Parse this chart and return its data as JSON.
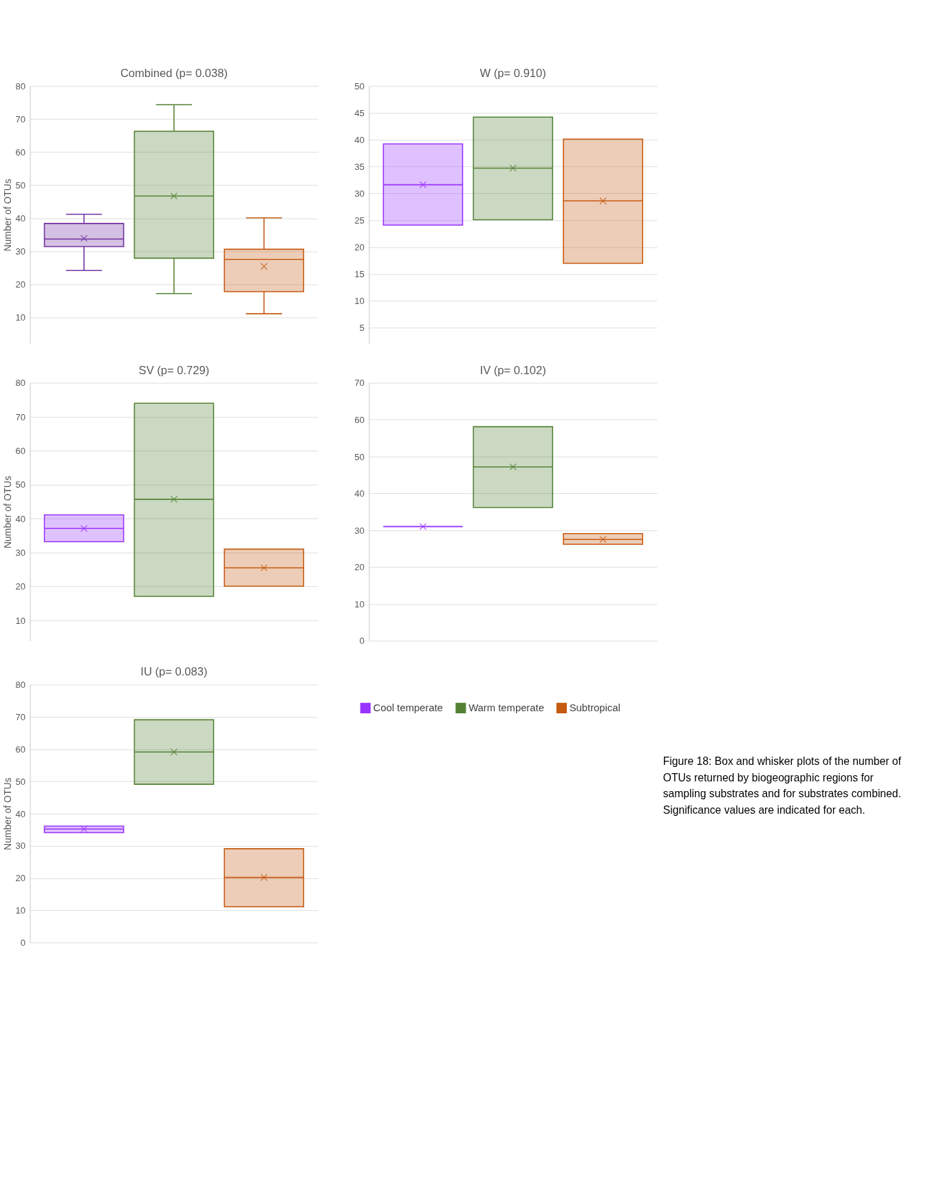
{
  "chart_data": [
    {
      "type": "box",
      "title": "Combined (p= 0.038)",
      "ylabel": "Number of OTUs",
      "categories": [
        null
      ],
      "ylim": [
        2,
        80
      ],
      "yticks": [
        10,
        20,
        30,
        40,
        50,
        60,
        70,
        80
      ],
      "grid": "y",
      "legend": false,
      "series": [
        {
          "color": "#7030a0",
          "boxes": [
            {
              "low": 24.2,
              "q1": 31.4,
              "median": 33.7,
              "q3": 38.4,
              "high": 41.2,
              "mean": 33.9
            }
          ]
        },
        {
          "color": "#548235",
          "boxes": [
            {
              "low": 17.2,
              "q1": 27.9,
              "median": 46.7,
              "q3": 66.3,
              "high": 74.3,
              "mean": 46.7
            }
          ]
        },
        {
          "color": "#c55a11",
          "boxes": [
            {
              "low": 11.1,
              "q1": 17.8,
              "median": 27.5,
              "q3": 30.6,
              "high": 40.1,
              "mean": 25.4
            }
          ]
        }
      ]
    },
    {
      "type": "box",
      "title": "W (p= 0.910)",
      "categories": [
        null
      ],
      "ylim": [
        2,
        50
      ],
      "yticks": [
        5,
        10,
        15,
        20,
        25,
        30,
        35,
        40,
        45,
        50
      ],
      "grid": "y",
      "legend": false,
      "series": [
        {
          "color": "#9933ff",
          "boxes": [
            {
              "low": 24.1,
              "q1": 24.1,
              "median": 31.6,
              "q3": 39.2,
              "high": 39.2,
              "mean": 31.6
            }
          ]
        },
        {
          "color": "#548235",
          "boxes": [
            {
              "low": 25.1,
              "q1": 25.1,
              "median": 34.7,
              "q3": 44.2,
              "high": 44.2,
              "mean": 34.7
            }
          ]
        },
        {
          "color": "#c55a11",
          "boxes": [
            {
              "low": 17.0,
              "q1": 17.0,
              "median": 28.6,
              "q3": 40.1,
              "high": 40.1,
              "mean": 28.6
            }
          ]
        }
      ]
    },
    {
      "type": "box",
      "title": "SV (p= 0.729)",
      "ylabel": "Number of OTUs",
      "categories": [
        null
      ],
      "ylim": [
        4,
        80
      ],
      "yticks": [
        10,
        20,
        30,
        40,
        50,
        60,
        70,
        80
      ],
      "grid": "y",
      "legend": false,
      "series": [
        {
          "color": "#9933ff",
          "boxes": [
            {
              "low": 33.2,
              "q1": 33.2,
              "median": 37.1,
              "q3": 41.1,
              "high": 41.1,
              "mean": 37.1
            }
          ]
        },
        {
          "color": "#548235",
          "boxes": [
            {
              "low": 17.1,
              "q1": 17.1,
              "median": 45.7,
              "q3": 74.0,
              "high": 74.0,
              "mean": 45.7
            }
          ]
        },
        {
          "color": "#c55a11",
          "boxes": [
            {
              "low": 20.1,
              "q1": 20.1,
              "median": 25.5,
              "q3": 31.0,
              "high": 31.0,
              "mean": 25.5
            }
          ]
        }
      ]
    },
    {
      "type": "box",
      "title": "IV (p= 0.102)",
      "categories": [
        null
      ],
      "ylim": [
        0,
        70
      ],
      "yticks": [
        0,
        10,
        20,
        30,
        40,
        50,
        60,
        70
      ],
      "grid": "y",
      "legend": false,
      "series": [
        {
          "color": "#9933ff",
          "boxes": [
            {
              "low": 31.0,
              "q1": 31.0,
              "median": 31.0,
              "q3": 31.0,
              "high": 31.0,
              "mean": 31.0
            }
          ]
        },
        {
          "color": "#548235",
          "boxes": [
            {
              "low": 36.2,
              "q1": 36.2,
              "median": 47.2,
              "q3": 58.1,
              "high": 58.1,
              "mean": 47.2
            }
          ]
        },
        {
          "color": "#c55a11",
          "boxes": [
            {
              "low": 26.2,
              "q1": 26.2,
              "median": 27.5,
              "q3": 29.1,
              "high": 29.1,
              "mean": 27.5
            }
          ]
        }
      ]
    },
    {
      "type": "box",
      "title": "IU (p= 0.083)",
      "ylabel": "Number of OTUs",
      "categories": [
        null
      ],
      "ylim": [
        0,
        80
      ],
      "yticks": [
        0,
        10,
        20,
        30,
        40,
        50,
        60,
        70,
        80
      ],
      "grid": "y",
      "legend": "right",
      "annotations": [
        "Figure 18: Box and whisker plots of the number of OTUs returned by biogeographic regions for sampling substrates and for substrates combined. Significance values are indicated for each."
      ],
      "series": [
        {
          "name": "Cool temperate",
          "color": "#9933ff",
          "boxes": [
            {
              "low": 34.1,
              "q1": 34.1,
              "median": 35.2,
              "q3": 36.1,
              "high": 36.1,
              "mean": 35.2
            }
          ]
        },
        {
          "name": "Warm temperate",
          "color": "#548235",
          "boxes": [
            {
              "low": 49.1,
              "q1": 49.1,
              "median": 59.1,
              "q3": 69.1,
              "high": 69.1,
              "mean": 59.1
            }
          ]
        },
        {
          "name": "Subtropical",
          "color": "#c55a11",
          "boxes": [
            {
              "low": 11.1,
              "q1": 11.1,
              "median": 20.2,
              "q3": 29.1,
              "high": 29.1,
              "mean": 20.2
            }
          ]
        }
      ]
    }
  ]
}
